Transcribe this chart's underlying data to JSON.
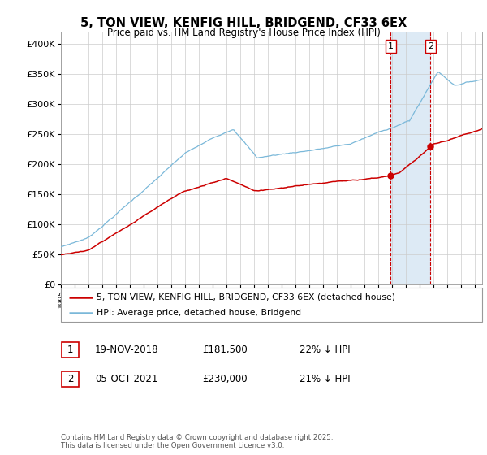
{
  "title": "5, TON VIEW, KENFIG HILL, BRIDGEND, CF33 6EX",
  "subtitle": "Price paid vs. HM Land Registry's House Price Index (HPI)",
  "legend_entries": [
    "5, TON VIEW, KENFIG HILL, BRIDGEND, CF33 6EX (detached house)",
    "HPI: Average price, detached house, Bridgend"
  ],
  "transaction1": {
    "label": "1",
    "date": "19-NOV-2018",
    "price": "£181,500",
    "hpi": "22% ↓ HPI"
  },
  "transaction2": {
    "label": "2",
    "date": "05-OCT-2021",
    "price": "£230,000",
    "hpi": "21% ↓ HPI"
  },
  "footnote": "Contains HM Land Registry data © Crown copyright and database right 2025.\nThis data is licensed under the Open Government Licence v3.0.",
  "ylim": [
    0,
    420000
  ],
  "yticks": [
    0,
    50000,
    100000,
    150000,
    200000,
    250000,
    300000,
    350000,
    400000
  ],
  "hpi_color": "#7ab8d9",
  "price_color": "#cc0000",
  "vline_color": "#cc0000",
  "shade_color": "#ddeaf5",
  "marker1_year": 2018.88,
  "marker2_year": 2021.75,
  "marker1_price": 181500,
  "marker2_price": 230000
}
